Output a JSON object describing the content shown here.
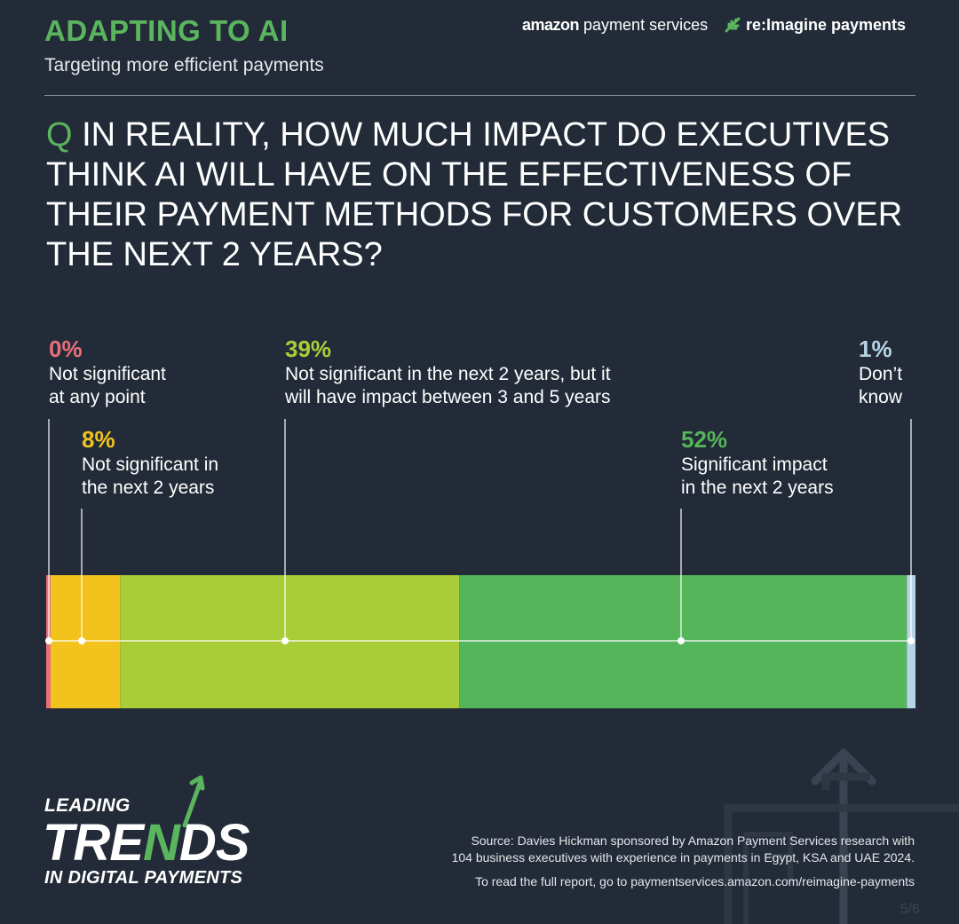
{
  "header": {
    "title": "ADAPTING TO AI",
    "subtitle": "Targeting more efficient payments",
    "brand_amazon": "amazon",
    "brand_amazon_rest": " payment services",
    "brand_reimagine": "re:Imagine payments"
  },
  "question": {
    "q_mark": "Q",
    "text": " IN REALITY, HOW MUCH IMPACT DO EXECUTIVES THINK AI WILL HAVE ON THE EFFECTIVENESS OF THEIR PAYMENT METHODS FOR CUSTOMERS OVER THE NEXT 2 YEARS?"
  },
  "chart_data": {
    "type": "bar",
    "orientation": "horizontal-stacked",
    "categories": [
      "Not significant at any point",
      "Not significant in the next 2 years",
      "Not significant in the next 2 years, but it will have impact between 3 and 5 years",
      "Significant impact in the next 2 years",
      "Don’t know"
    ],
    "values": [
      0,
      8,
      39,
      52,
      1
    ],
    "value_labels": [
      "0%",
      "8%",
      "39%",
      "52%",
      "1%"
    ],
    "colors": [
      "#e8707a",
      "#f2c31d",
      "#a9cd37",
      "#55b55a",
      "#b6d4e6"
    ],
    "label_lines": [
      [
        "Not significant",
        "at any point"
      ],
      [
        "Not significant in",
        "the next 2 years"
      ],
      [
        "Not significant in the next 2 years, but it",
        "will have impact between 3 and 5 years"
      ],
      [
        "Significant impact",
        "in the next 2 years"
      ],
      [
        "Don’t",
        "know"
      ]
    ],
    "grid": false,
    "legend": "callouts"
  },
  "footer": {
    "logo_top": "LEADING",
    "logo_mid_a": "TRE",
    "logo_mid_n": "N",
    "logo_mid_b": "DS",
    "logo_bottom": "IN DIGITAL PAYMENTS",
    "source_line1": "Source: Davies Hickman sponsored by Amazon Payment Services research with",
    "source_line2": "104 business executives with experience in payments in Egypt, KSA and UAE 2024.",
    "report": "To read the full report, go to paymentservices.amazon.com/reimagine-payments",
    "page": "5/6"
  },
  "colors": {
    "background": "#232b38",
    "accent_green": "#5ab55e"
  }
}
